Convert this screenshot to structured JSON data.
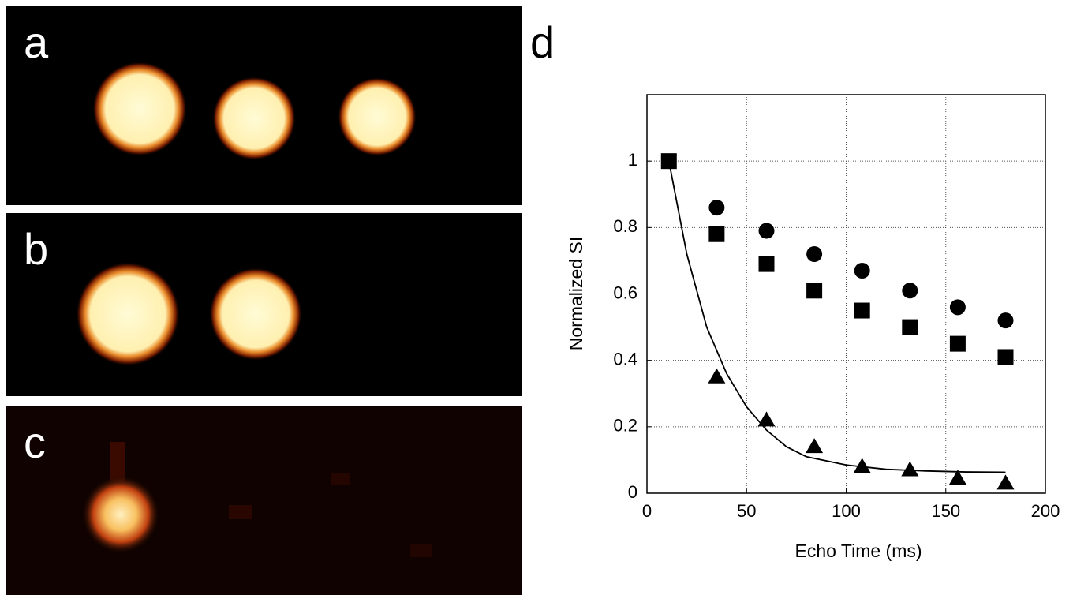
{
  "panels": {
    "labels": [
      "a",
      "b",
      "c"
    ]
  },
  "chart_data": {
    "type": "scatter",
    "panel_label": "d",
    "x_label": "Echo Time (ms)",
    "y_label": "Normalized SI",
    "xlim": [
      0,
      200
    ],
    "ylim": [
      0,
      1.2
    ],
    "xticks": [
      0,
      50,
      100,
      150,
      200
    ],
    "yticks": [
      0,
      0.2,
      0.4,
      0.6,
      0.8,
      1
    ],
    "grid": true,
    "series": [
      {
        "marker": "circle",
        "color": "#000000",
        "x": [
          35,
          60,
          84,
          108,
          132,
          156,
          180
        ],
        "values": [
          0.86,
          0.79,
          0.72,
          0.67,
          0.61,
          0.56,
          0.52
        ]
      },
      {
        "marker": "square",
        "color": "#000000",
        "x": [
          11,
          35,
          60,
          84,
          108,
          132,
          156,
          180
        ],
        "values": [
          1.0,
          0.78,
          0.69,
          0.61,
          0.55,
          0.5,
          0.45,
          0.41
        ]
      },
      {
        "marker": "triangle",
        "color": "#000000",
        "x": [
          35,
          60,
          84,
          108,
          132,
          156,
          180
        ],
        "values": [
          0.35,
          0.22,
          0.14,
          0.08,
          0.07,
          0.045,
          0.03
        ]
      },
      {
        "marker": "line",
        "color": "#000000",
        "x": [
          11,
          20,
          30,
          40,
          50,
          60,
          70,
          80,
          100,
          120,
          140,
          160,
          180
        ],
        "values": [
          1.0,
          0.72,
          0.5,
          0.36,
          0.26,
          0.19,
          0.14,
          0.11,
          0.085,
          0.072,
          0.067,
          0.064,
          0.063
        ]
      }
    ]
  }
}
